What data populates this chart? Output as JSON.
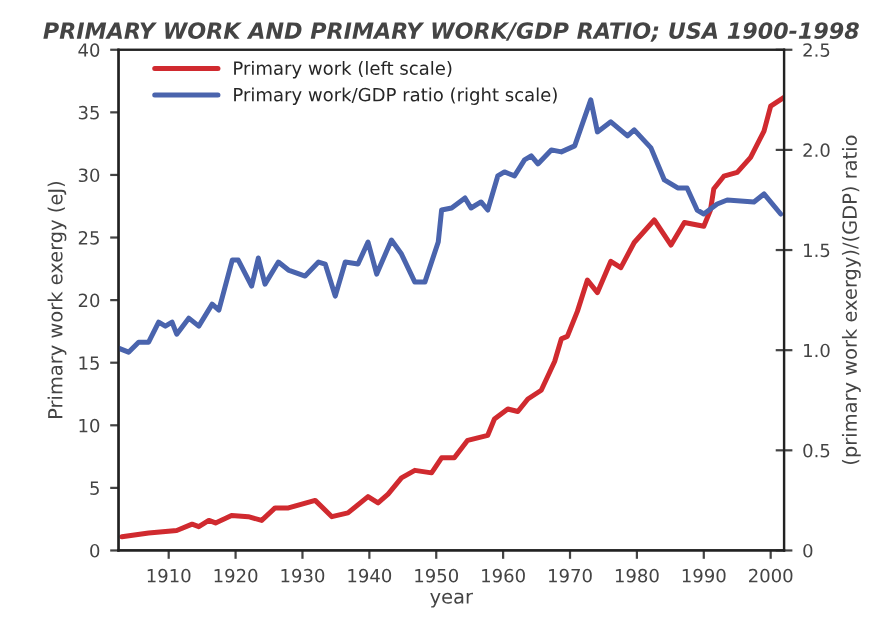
{
  "chart_data": {
    "type": "line",
    "title": "PRIMARY WORK AND PRIMARY WORK/GDP RATIO; USA 1900-1998",
    "xlabel": "year",
    "ylabel": "Primary work exergy (eJ)",
    "y2label": "(primary work exergy)/(GDP) ratio",
    "xlim": [
      1902.5,
      2002
    ],
    "xticks": [
      1910,
      1920,
      1930,
      1940,
      1950,
      1960,
      1970,
      1980,
      1990,
      2000
    ],
    "ylim": [
      0,
      40
    ],
    "yticks": [
      0,
      5,
      10,
      15,
      20,
      25,
      30,
      35,
      40
    ],
    "y2lim": [
      0,
      2.5
    ],
    "y2ticks": [
      0,
      0.5,
      {
        "value": 1.0,
        "label": "1.0"
      },
      1.5,
      {
        "value": 2.0,
        "label": "2.0"
      },
      2.5
    ],
    "grid": false,
    "legend": "top left",
    "line_style": "solid",
    "marker": "none",
    "series": [
      {
        "name": "Primary work (left scale)",
        "color": "#d02a2f",
        "x": [
          1903.0,
          1907.0,
          1911.2,
          1913.5,
          1914.5,
          1916.0,
          1917.0,
          1919.4,
          1921.9,
          1923.9,
          1925.9,
          1927.9,
          1931.9,
          1934.4,
          1936.8,
          1939.8,
          1941.3,
          1942.8,
          1944.8,
          1946.8,
          1949.3,
          1950.8,
          1952.7,
          1954.7,
          1957.7,
          1958.7,
          1960.7,
          1962.2,
          1963.7,
          1965.7,
          1967.7,
          1968.7,
          1969.6,
          1971.1,
          1972.6,
          1974.1,
          1976.1,
          1977.6,
          1979.6,
          1982.6,
          1985.1,
          1987.1,
          1990.0,
          1991.0,
          1991.5,
          1993.0,
          1995.0,
          1997.0,
          1999.0,
          2000.0,
          2002.0
        ],
        "values": [
          1.1,
          1.4,
          1.6,
          2.1,
          1.9,
          2.4,
          2.2,
          2.8,
          2.7,
          2.4,
          3.4,
          3.4,
          4.0,
          2.7,
          3.0,
          4.3,
          3.8,
          4.5,
          5.8,
          6.4,
          6.2,
          7.4,
          7.4,
          8.8,
          9.2,
          10.5,
          11.3,
          11.1,
          12.1,
          12.8,
          15.1,
          16.9,
          17.1,
          19.1,
          21.6,
          20.6,
          23.1,
          22.6,
          24.6,
          26.4,
          24.4,
          26.2,
          25.9,
          27.2,
          28.9,
          29.9,
          30.2,
          31.4,
          33.5,
          35.5,
          36.2
        ]
      },
      {
        "name": "Primary work/GDP ratio (right scale)",
        "color": "#4a64ad",
        "axis": "y2",
        "x": [
          1902.5,
          1904.0,
          1905.5,
          1907.0,
          1908.5,
          1909.5,
          1910.5,
          1911.2,
          1913.0,
          1914.5,
          1916.5,
          1917.5,
          1919.5,
          1920.4,
          1922.4,
          1923.4,
          1924.4,
          1926.4,
          1927.9,
          1930.4,
          1932.4,
          1933.4,
          1934.9,
          1936.4,
          1938.3,
          1939.8,
          1941.1,
          1943.3,
          1944.8,
          1946.8,
          1948.3,
          1950.3,
          1950.8,
          1952.3,
          1954.3,
          1955.2,
          1956.7,
          1957.7,
          1959.2,
          1960.2,
          1961.7,
          1963.2,
          1964.2,
          1965.2,
          1967.2,
          1968.7,
          1970.7,
          1973.1,
          1974.1,
          1976.1,
          1978.6,
          1979.6,
          1982.1,
          1984.1,
          1986.1,
          1987.5,
          1989.0,
          1990.0,
          1992.0,
          1993.5,
          1997.5,
          1999.0,
          2001.5
        ],
        "values": [
          1.01,
          0.99,
          1.04,
          1.04,
          1.14,
          1.12,
          1.14,
          1.08,
          1.16,
          1.12,
          1.23,
          1.2,
          1.45,
          1.45,
          1.32,
          1.46,
          1.33,
          1.44,
          1.4,
          1.37,
          1.44,
          1.43,
          1.27,
          1.44,
          1.43,
          1.54,
          1.38,
          1.55,
          1.48,
          1.34,
          1.34,
          1.54,
          1.7,
          1.71,
          1.76,
          1.71,
          1.74,
          1.7,
          1.87,
          1.89,
          1.87,
          1.95,
          1.97,
          1.93,
          2.0,
          1.99,
          2.02,
          2.25,
          2.09,
          2.14,
          2.07,
          2.1,
          2.01,
          1.85,
          1.81,
          1.81,
          1.7,
          1.68,
          1.73,
          1.75,
          1.74,
          1.78,
          1.68
        ]
      }
    ]
  }
}
